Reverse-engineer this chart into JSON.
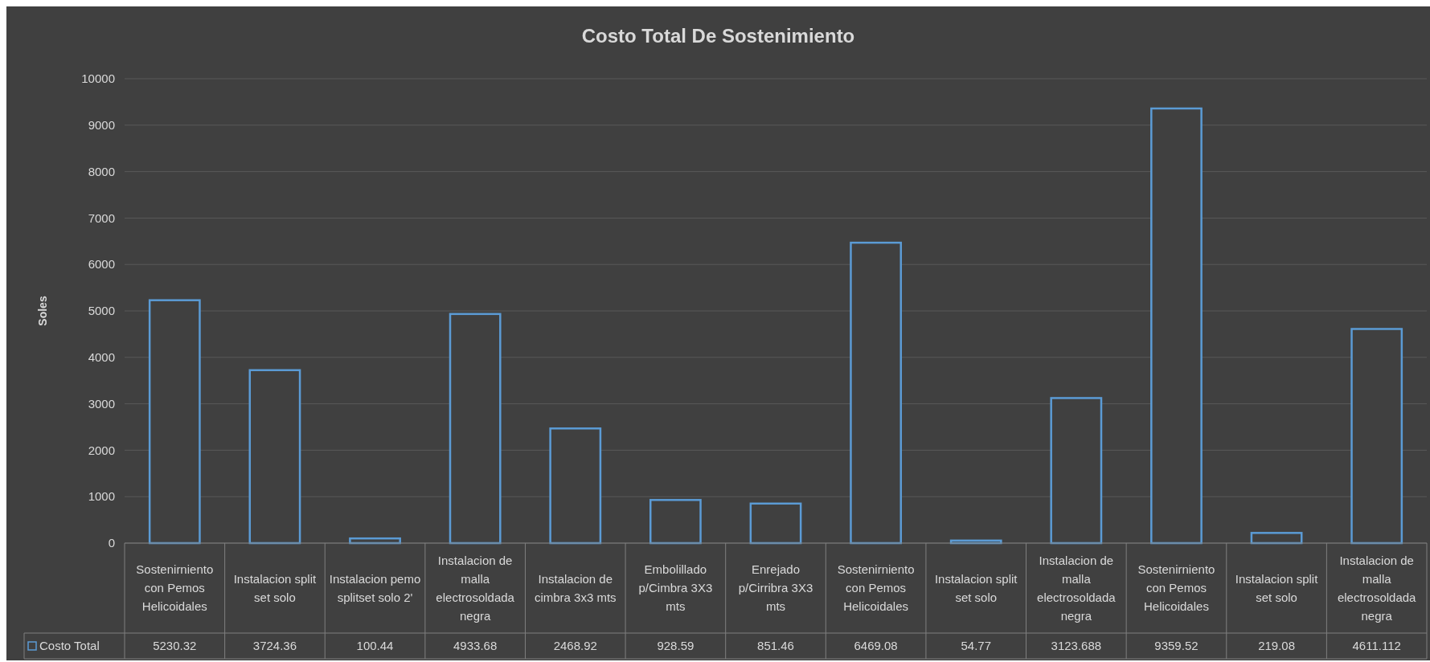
{
  "chart_data": {
    "type": "bar",
    "title": "Costo Total De Sostenimiento",
    "ylabel": "Soles",
    "categories": [
      "Sostenirniento con Pemos Helicoidales",
      "Instalacion split set solo",
      "Instalacion pemo splitset solo 2'",
      "Instalacion de malla electrosoldada negra",
      "Instalacion de cimbra 3x3 mts",
      "Embolillado p/Cimbra 3X3 mts",
      "Enrejado p/Cirribra 3X3 mts",
      "Sostenirniento con Pemos Helicoidales",
      "Instalacion split set solo",
      "Instalacion de malla electrosoldada negra",
      "Sostenirniento con Pemos Helicoidales",
      "Instalacion split set solo",
      "Instalacion de malla electrosoldada negra"
    ],
    "series": [
      {
        "name": "Costo Total",
        "color": "#5b9bd5",
        "values": [
          5230.32,
          3724.36,
          100.44,
          4933.68,
          2468.92,
          928.59,
          851.46,
          6469.08,
          54.77,
          3123.688,
          9359.52,
          219.08,
          4611.112
        ],
        "value_labels": [
          "5230.32",
          "3724.36",
          "100.44",
          "4933.68",
          "2468.92",
          "928.59",
          "851.46",
          "6469.08",
          "54.77",
          "3123.688",
          "9359.52",
          "219.08",
          "4611.112"
        ]
      }
    ],
    "ylim": [
      0,
      10000
    ],
    "yticks": [
      0,
      1000,
      2000,
      3000,
      4000,
      5000,
      6000,
      7000,
      8000,
      9000,
      10000
    ],
    "grid": "y",
    "legend": "bottom"
  }
}
